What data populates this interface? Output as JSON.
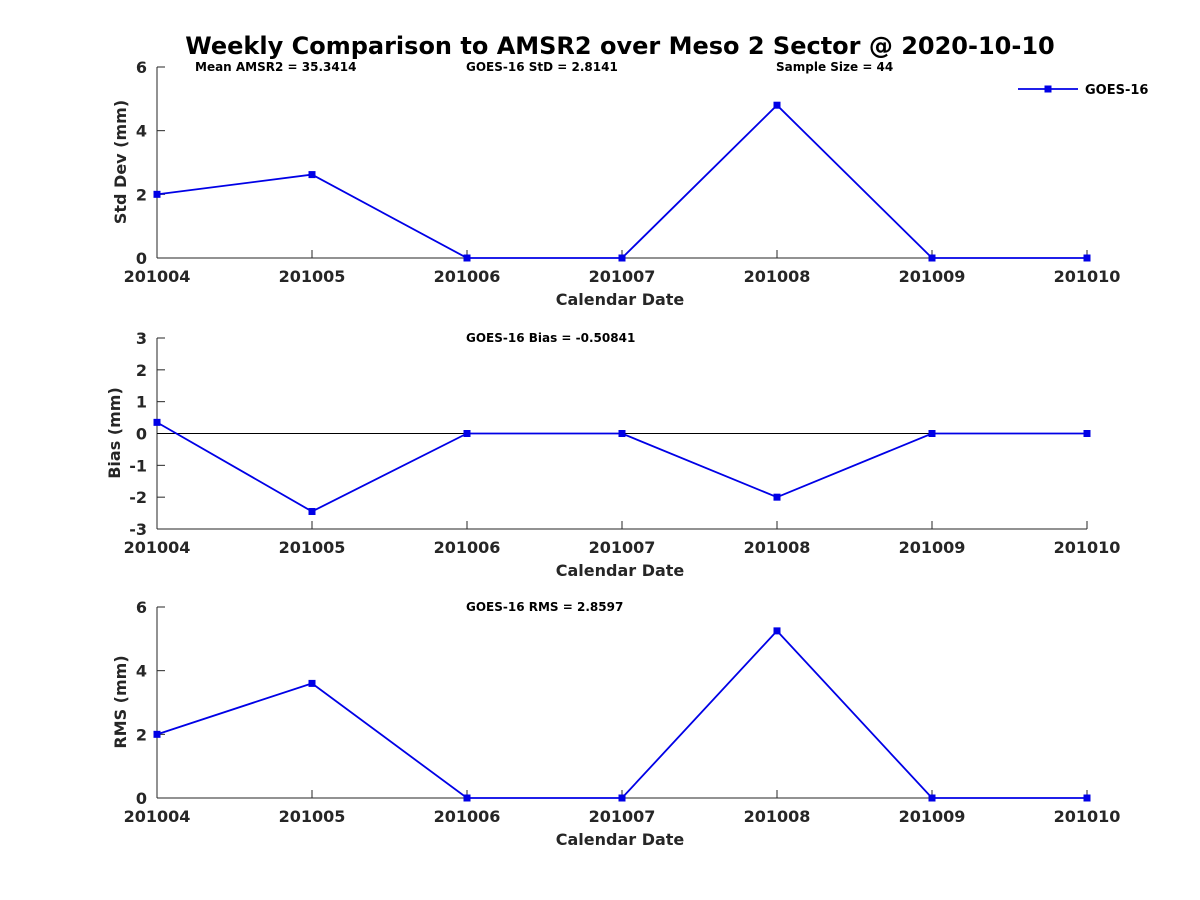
{
  "chart_data": [
    {
      "type": "line",
      "title": "Weekly Comparison to AMSR2 over Meso 2 Sector @ 2020-10-10",
      "categories": [
        "201004",
        "201005",
        "201006",
        "201007",
        "201008",
        "201009",
        "201010"
      ],
      "series": [
        {
          "name": "GOES-16",
          "values": [
            2.0,
            2.62,
            0.0,
            0.0,
            4.8,
            0.0,
            0.0
          ]
        }
      ],
      "ylim": [
        0,
        6
      ],
      "yticks": [
        "0",
        "2",
        "4",
        "6"
      ],
      "ylabel": "Std Dev (mm)",
      "xlabel": "Calendar Date",
      "annotations": [
        "Mean AMSR2 = 35.3414",
        "GOES-16 StD = 2.8141",
        "Sample Size = 44"
      ],
      "legend": {
        "label": "GOES-16",
        "position": "top-right"
      },
      "color": "#0000e6"
    },
    {
      "type": "line",
      "categories": [
        "201004",
        "201005",
        "201006",
        "201007",
        "201008",
        "201009",
        "201010"
      ],
      "series": [
        {
          "name": "GOES-16",
          "values": [
            0.35,
            -2.45,
            0.0,
            0.0,
            -2.0,
            0.0,
            0.0
          ]
        }
      ],
      "ylim": [
        -3,
        3
      ],
      "yticks": [
        "-3",
        "-2",
        "-1",
        "0",
        "1",
        "2",
        "3"
      ],
      "ylabel": "Bias (mm)",
      "xlabel": "Calendar Date",
      "annotations": [
        "GOES-16 Bias  = -0.50841"
      ],
      "zero_line": true,
      "color": "#0000e6"
    },
    {
      "type": "line",
      "categories": [
        "201004",
        "201005",
        "201006",
        "201007",
        "201008",
        "201009",
        "201010"
      ],
      "series": [
        {
          "name": "GOES-16",
          "values": [
            2.0,
            3.6,
            0.0,
            0.0,
            5.25,
            0.0,
            0.0
          ]
        }
      ],
      "ylim": [
        0,
        6
      ],
      "yticks": [
        "0",
        "2",
        "4",
        "6"
      ],
      "ylabel": "RMS (mm)",
      "xlabel": "Calendar Date",
      "annotations": [
        "GOES-16 RMS = 2.8597"
      ],
      "color": "#0000e6"
    }
  ]
}
